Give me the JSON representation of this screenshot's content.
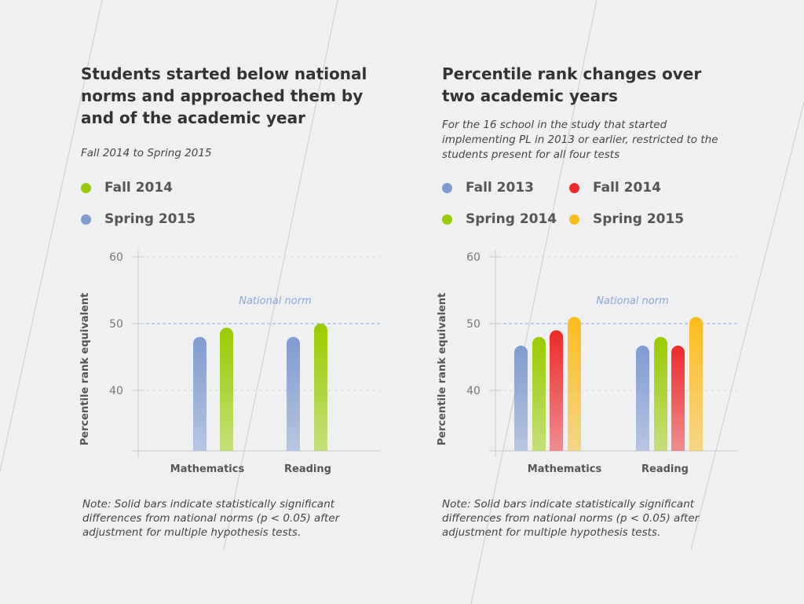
{
  "colors": {
    "blue": "#7f9bd0",
    "green": "#99cc00",
    "red": "#ee2a2a",
    "orange": "#fbbc1c"
  },
  "chart_data": [
    {
      "type": "bar",
      "title": "Students started below national norms and approached them by and of the academic year",
      "subtitle": "Fall 2014 to Spring 2015",
      "ylabel": "Percentile rank equivalent",
      "xlabel": "",
      "ylim": [
        31,
        60
      ],
      "yticks": [
        40,
        50,
        60
      ],
      "categories": [
        "Mathematics",
        "Reading"
      ],
      "series": [
        {
          "name": "Fall 2014",
          "color": "#99cc00",
          "values": [
            49.4,
            50
          ]
        },
        {
          "name": "Spring 2015",
          "color": "#7f9bd0",
          "values": [
            48,
            48
          ]
        }
      ],
      "bar_order": [
        "Spring 2015",
        "Fall 2014"
      ],
      "reference_line": {
        "value": 50,
        "label": "National norm"
      },
      "legend": "top",
      "grid": true,
      "note": "Note: Solid bars indicate statistically significant differences from national norms (p < 0.05) after adjustment for multiple hypothesis tests."
    },
    {
      "type": "bar",
      "title": "Percentile rank changes over two academic years",
      "subtitle": "For the 16 school in the study that started implementing PL in 2013 or earlier, restricted to the students present for all four tests",
      "ylabel": "Percentile rank equivalent",
      "xlabel": "",
      "ylim": [
        31,
        60
      ],
      "yticks": [
        40,
        50,
        60
      ],
      "categories": [
        "Mathematics",
        "Reading"
      ],
      "series": [
        {
          "name": "Fall 2013",
          "color": "#7f9bd0",
          "values": [
            46.7,
            46.7
          ]
        },
        {
          "name": "Spring 2014",
          "color": "#99cc00",
          "values": [
            48,
            48
          ]
        },
        {
          "name": "Fall 2014",
          "color": "#ee2a2a",
          "values": [
            49,
            46.7
          ]
        },
        {
          "name": "Spring 2015",
          "color": "#fbbc1c",
          "values": [
            51,
            51
          ]
        }
      ],
      "bar_order": [
        "Fall 2013",
        "Spring 2014",
        "Fall 2014",
        "Spring 2015"
      ],
      "reference_line": {
        "value": 50,
        "label": "National norm"
      },
      "legend": "top",
      "grid": true,
      "note": "Note: Solid bars indicate statistically significant differences from national norms (p < 0.05) after adjustment for multiple hypothesis tests."
    }
  ]
}
